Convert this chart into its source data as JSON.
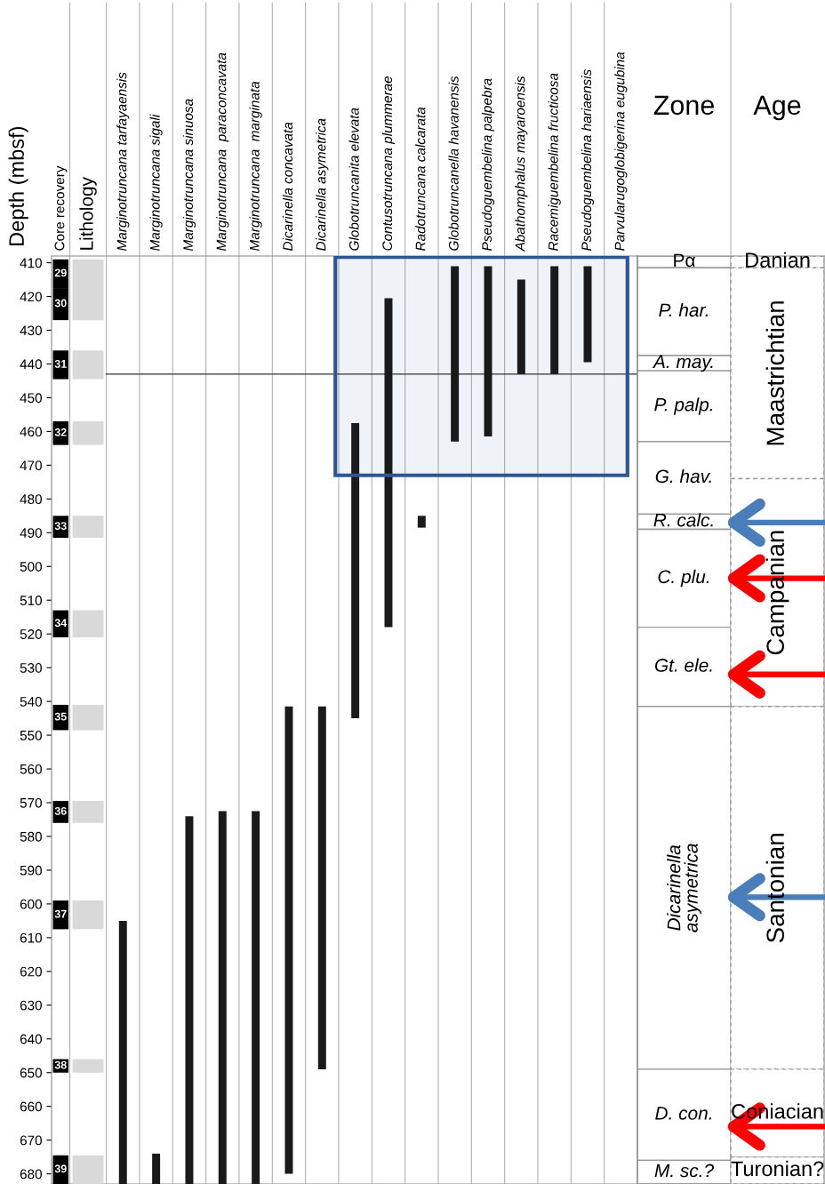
{
  "chart_data": [
    {
      "type": "bar",
      "ylabel": "Depth (mbsf)",
      "categories": [
        "Core recovery",
        "Lithology",
        "Marginotruncana tarfayaensis",
        "Marginotruncana sigali",
        "Marginotruncana sinuosa",
        "Marginotruncana  paraconcavata",
        "Marginotruncana  marginata",
        "Dicarinella concavata",
        "Dicarinella asymetrica",
        "Globotruncanita elevata",
        "Contusotruncana plummerae",
        "Radotruncana calcarata",
        "Globotruncanella havanensis",
        "Pseudoguembelina palpebra",
        "Abathomphalus mayaroensis",
        "Racemiguembelina fructicosa",
        "Pseudoguembelina hariaensis",
        "Parvularugoglobigerina eugubina"
      ],
      "series": [
        {
          "color": "#1a1a1a",
          "base": [
            null,
            null,
            605,
            674,
            574,
            572.5,
            572.5,
            541.5,
            541.5,
            457.5,
            420.5,
            485,
            411,
            411,
            415,
            411,
            411,
            null
          ],
          "values": [
            null,
            null,
            78,
            9,
            109,
            110.5,
            110.5,
            138.5,
            107.5,
            87.5,
            97.5,
            3.5,
            52,
            50.5,
            28,
            32,
            28.5,
            null
          ]
        },
        {
          "name": "29",
          "colors": [
            "#000000",
            "#d9d9d9",
            null,
            null,
            null,
            null,
            null,
            null,
            null,
            null,
            null,
            null,
            null,
            null,
            null,
            null,
            null,
            null
          ],
          "base": [
            409,
            409,
            null,
            null,
            null,
            null,
            null,
            null,
            null,
            null,
            null,
            null,
            null,
            null,
            null,
            null,
            null,
            null
          ],
          "values": [
            8.5,
            8.5,
            null,
            null,
            null,
            null,
            null,
            null,
            null,
            null,
            null,
            null,
            null,
            null,
            null,
            null,
            null,
            null
          ]
        },
        {
          "name": "30",
          "colors": [
            "#000000",
            "#d9d9d9",
            null,
            null,
            null,
            null,
            null,
            null,
            null,
            null,
            null,
            null,
            null,
            null,
            null,
            null,
            null,
            null
          ],
          "base": [
            417.5,
            417.5,
            null,
            null,
            null,
            null,
            null,
            null,
            null,
            null,
            null,
            null,
            null,
            null,
            null,
            null,
            null,
            null
          ],
          "values": [
            9.5,
            9.5,
            null,
            null,
            null,
            null,
            null,
            null,
            null,
            null,
            null,
            null,
            null,
            null,
            null,
            null,
            null,
            null
          ]
        },
        {
          "name": "31",
          "colors": [
            "#000000",
            "#d9d9d9",
            null,
            null,
            null,
            null,
            null,
            null,
            null,
            null,
            null,
            null,
            null,
            null,
            null,
            null,
            null,
            null
          ],
          "base": [
            436,
            436,
            null,
            null,
            null,
            null,
            null,
            null,
            null,
            null,
            null,
            null,
            null,
            null,
            null,
            null,
            null,
            null
          ],
          "values": [
            8.5,
            8.5,
            null,
            null,
            null,
            null,
            null,
            null,
            null,
            null,
            null,
            null,
            null,
            null,
            null,
            null,
            null,
            null
          ]
        },
        {
          "name": "32",
          "colors": [
            "#000000",
            "#d9d9d9",
            null,
            null,
            null,
            null,
            null,
            null,
            null,
            null,
            null,
            null,
            null,
            null,
            null,
            null,
            null,
            null
          ],
          "base": [
            457,
            457,
            null,
            null,
            null,
            null,
            null,
            null,
            null,
            null,
            null,
            null,
            null,
            null,
            null,
            null,
            null,
            null
          ],
          "values": [
            7,
            7,
            null,
            null,
            null,
            null,
            null,
            null,
            null,
            null,
            null,
            null,
            null,
            null,
            null,
            null,
            null,
            null
          ]
        },
        {
          "name": "33",
          "colors": [
            "#000000",
            "#d9d9d9",
            null,
            null,
            null,
            null,
            null,
            null,
            null,
            null,
            null,
            null,
            null,
            null,
            null,
            null,
            null,
            null
          ],
          "base": [
            485,
            485,
            null,
            null,
            null,
            null,
            null,
            null,
            null,
            null,
            null,
            null,
            null,
            null,
            null,
            null,
            null,
            null
          ],
          "values": [
            6.5,
            6.5,
            null,
            null,
            null,
            null,
            null,
            null,
            null,
            null,
            null,
            null,
            null,
            null,
            null,
            null,
            null,
            null
          ]
        },
        {
          "name": "34",
          "colors": [
            "#000000",
            "#d9d9d9",
            null,
            null,
            null,
            null,
            null,
            null,
            null,
            null,
            null,
            null,
            null,
            null,
            null,
            null,
            null,
            null
          ],
          "base": [
            513,
            513,
            null,
            null,
            null,
            null,
            null,
            null,
            null,
            null,
            null,
            null,
            null,
            null,
            null,
            null,
            null,
            null
          ],
          "values": [
            8,
            8,
            null,
            null,
            null,
            null,
            null,
            null,
            null,
            null,
            null,
            null,
            null,
            null,
            null,
            null,
            null,
            null
          ]
        },
        {
          "name": "35",
          "colors": [
            "#000000",
            "#d9d9d9",
            null,
            null,
            null,
            null,
            null,
            null,
            null,
            null,
            null,
            null,
            null,
            null,
            null,
            null,
            null,
            null
          ],
          "base": [
            541,
            541,
            null,
            null,
            null,
            null,
            null,
            null,
            null,
            null,
            null,
            null,
            null,
            null,
            null,
            null,
            null,
            null
          ],
          "values": [
            7.5,
            7.5,
            null,
            null,
            null,
            null,
            null,
            null,
            null,
            null,
            null,
            null,
            null,
            null,
            null,
            null,
            null,
            null
          ]
        },
        {
          "name": "36",
          "colors": [
            "#000000",
            "#d9d9d9",
            null,
            null,
            null,
            null,
            null,
            null,
            null,
            null,
            null,
            null,
            null,
            null,
            null,
            null,
            null,
            null
          ],
          "base": [
            569.5,
            569.5,
            null,
            null,
            null,
            null,
            null,
            null,
            null,
            null,
            null,
            null,
            null,
            null,
            null,
            null,
            null,
            null
          ],
          "values": [
            6.5,
            6.5,
            null,
            null,
            null,
            null,
            null,
            null,
            null,
            null,
            null,
            null,
            null,
            null,
            null,
            null,
            null,
            null
          ]
        },
        {
          "name": "37",
          "colors": [
            "#000000",
            "#d9d9d9",
            null,
            null,
            null,
            null,
            null,
            null,
            null,
            null,
            null,
            null,
            null,
            null,
            null,
            null,
            null,
            null
          ],
          "base": [
            599,
            599,
            null,
            null,
            null,
            null,
            null,
            null,
            null,
            null,
            null,
            null,
            null,
            null,
            null,
            null,
            null,
            null
          ],
          "values": [
            8.5,
            8.5,
            null,
            null,
            null,
            null,
            null,
            null,
            null,
            null,
            null,
            null,
            null,
            null,
            null,
            null,
            null,
            null
          ]
        },
        {
          "name": "38",
          "colors": [
            "#000000",
            "#d9d9d9",
            null,
            null,
            null,
            null,
            null,
            null,
            null,
            null,
            null,
            null,
            null,
            null,
            null,
            null,
            null,
            null
          ],
          "base": [
            646,
            646,
            null,
            null,
            null,
            null,
            null,
            null,
            null,
            null,
            null,
            null,
            null,
            null,
            null,
            null,
            null,
            null
          ],
          "values": [
            4,
            4,
            null,
            null,
            null,
            null,
            null,
            null,
            null,
            null,
            null,
            null,
            null,
            null,
            null,
            null,
            null,
            null
          ]
        },
        {
          "name": "39",
          "colors": [
            "#000000",
            "#d9d9d9",
            null,
            null,
            null,
            null,
            null,
            null,
            null,
            null,
            null,
            null,
            null,
            null,
            null,
            null,
            null,
            null
          ],
          "base": [
            674.5,
            674.5,
            null,
            null,
            null,
            null,
            null,
            null,
            null,
            null,
            null,
            null,
            null,
            null,
            null,
            null,
            null,
            null
          ],
          "values": [
            8.5,
            8.5,
            null,
            null,
            null,
            null,
            null,
            null,
            null,
            null,
            null,
            null,
            null,
            null,
            null,
            null,
            null,
            null
          ]
        }
      ],
      "ylim": [
        683,
        408
      ],
      "yticks": [
        410,
        420,
        430,
        440,
        450,
        460,
        470,
        480,
        490,
        500,
        510,
        520,
        530,
        540,
        550,
        560,
        570,
        580,
        590,
        600,
        610,
        620,
        630,
        640,
        650,
        660,
        670,
        680
      ],
      "ref_lines": [
        {
          "axis": "y",
          "value": 443,
          "color": "#333333"
        }
      ],
      "bands": [
        {
          "axis": "y",
          "from": 408,
          "to": 473,
          "color": "#2e5596"
        }
      ]
    },
    {
      "type": "bar",
      "categories": [
        "Zone",
        "Age"
      ],
      "ylim": [
        683,
        408
      ],
      "tick_labels": "x",
      "series": [
        {
          "name": "Pα",
          "color": "#ffffff",
          "base": [
            408,
            null
          ],
          "values": [
            3.5,
            null
          ]
        },
        {
          "name": "P. har.",
          "color": "#ffffff",
          "base": [
            411.5,
            null
          ],
          "values": [
            26,
            null
          ]
        },
        {
          "name": "A. may.",
          "color": "#ffffff",
          "base": [
            437.5,
            null
          ],
          "values": [
            4.5,
            null
          ]
        },
        {
          "name": "P. palp.",
          "color": "#ffffff",
          "base": [
            442,
            null
          ],
          "values": [
            21,
            null
          ]
        },
        {
          "name": "G. hav.",
          "color": "#ffffff",
          "base": [
            463,
            null
          ],
          "values": [
            21.5,
            null
          ]
        },
        {
          "name": "R. calc.",
          "color": "#ffffff",
          "base": [
            484.5,
            null
          ],
          "values": [
            4.5,
            null
          ]
        },
        {
          "name": "C. plu.",
          "color": "#ffffff",
          "base": [
            489,
            null
          ],
          "values": [
            29,
            null
          ]
        },
        {
          "name": "Gt. ele.",
          "color": "#ffffff",
          "base": [
            518,
            null
          ],
          "values": [
            23.5,
            null
          ]
        },
        {
          "name": "Dicarinella asymetrica",
          "color": "#ffffff",
          "base": [
            541.5,
            null
          ],
          "values": [
            107.5,
            null
          ]
        },
        {
          "name": "D. con.",
          "color": "#ffffff",
          "base": [
            649,
            null
          ],
          "values": [
            27,
            null
          ]
        },
        {
          "name": "M. sc.?",
          "color": "#ffffff",
          "base": [
            676,
            null
          ],
          "values": [
            7,
            null
          ]
        },
        {
          "name": "Danian",
          "color": "#ffffff",
          "line_style": "dashed",
          "base": [
            null,
            408
          ],
          "values": [
            null,
            3.5
          ]
        },
        {
          "name": "Maastrichtian",
          "color": "#ffffff",
          "line_style": "dashed",
          "base": [
            null,
            411.5
          ],
          "values": [
            null,
            62.5
          ]
        },
        {
          "name": "Campanian",
          "color": "#ffffff",
          "line_style": "dashed",
          "base": [
            null,
            474
          ],
          "values": [
            null,
            67.5
          ]
        },
        {
          "name": "Santonian",
          "color": "#ffffff",
          "line_style": "dashed",
          "base": [
            null,
            541.5
          ],
          "values": [
            null,
            107.5
          ]
        },
        {
          "name": "Coniacian",
          "color": "#ffffff",
          "line_style": "dashed",
          "base": [
            null,
            649
          ],
          "values": [
            null,
            26
          ]
        },
        {
          "name": "Turonian?",
          "color": "#ffffff",
          "line_style": "dashed",
          "base": [
            null,
            675
          ],
          "values": [
            null,
            8
          ]
        }
      ]
    }
  ]
}
